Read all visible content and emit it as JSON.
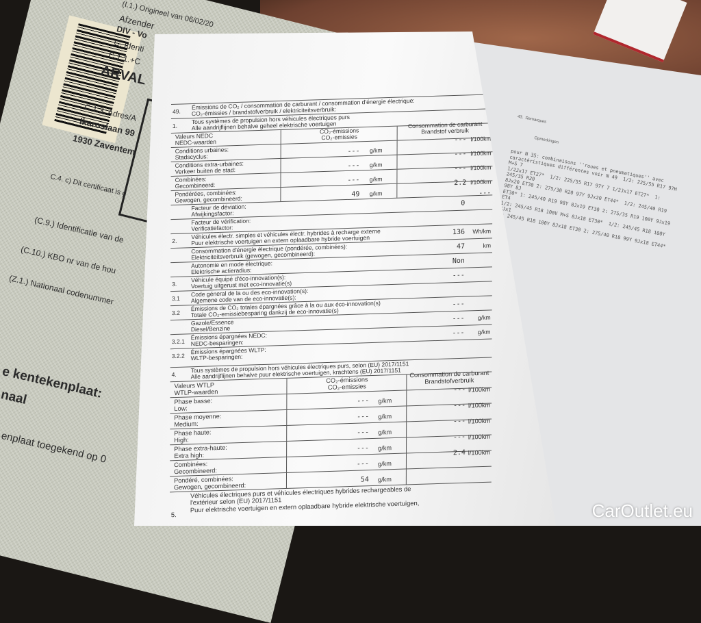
{
  "certificate": {
    "lines": [
      "(I.1.)  Origineel van 06/02/20",
      "Afzender",
      "DIV - Vo",
      "C. Identi",
      "C.1.1.+C",
      "ARVAL",
      "C.1.3. Adres/A",
      "Ikaroslaan 99",
      "1930 Zaventem",
      "C.4. c) Dit certificaat is g",
      "(C.9.) Identificatie van de",
      "(C.10.) KBO nr van de hou",
      "(Z.1.) Nationaal codenummer",
      "e kentekenplaat:",
      "naal",
      "enplaat toegekend op 0"
    ]
  },
  "remarks": {
    "header": [
      "43.  Remarques",
      "Opmerkingen"
    ],
    "text": "pour N 35: combinaisons ''roues et pneumatiques'' avec\ncaractéristiques différentes voir N 49  1/2: 225/55 R17 97H M+S 7\n1/2Jx17 ET27*  1/2: 225/55 R17 97Y 7 1/2Jx17 ET27*  1: 245/35 R20\n8Jx20 ET30 2: 275/30 R20 97Y 9Jx20 ET44*  1/2: 245/40 R19 98Y 8J\nET30* 1: 245/40 R19 98Y 8Jx19 ET30 2: 275/35 R19 100Y 9Jx19 ET4\n1/2: 245/45 R18 100V M+S 8Jx18 ET30*  1/2: 245/45 R18 100Y 8Jx1\n1: 245/45 R18 100Y 8Jx18 ET30 2: 275/40 R18 99Y 9Jx18 ET44*"
  },
  "section49": {
    "num": "49.",
    "l1": "Émissions de CO₂ / consommation de carburant / consommation d'énergie électrique:",
    "l2": "CO₂-émissies / brandstofverbruik / elektriciteitsverbruik:"
  },
  "section1": {
    "num": "1.",
    "l1": "Tous systèmes de propulsion hors véhicules électriques purs",
    "l2": "Alle aandrijflijnen behalve geheel elektrische voertuigen"
  },
  "nedc_table": {
    "headers": [
      [
        "Valeurs NEDC",
        "NEDC-waarden"
      ],
      [
        "CO₂-émissions",
        "CO₂-emissies"
      ],
      [
        "Consommation de carburant",
        "Brandstof verbruik"
      ]
    ],
    "rows": [
      {
        "l1": "Conditions urbaines:",
        "l2": "Stadscyclus:",
        "co2": "---",
        "co2_unit": "g/km",
        "fuel": "---",
        "fuel_unit": "l/100km"
      },
      {
        "l1": "Conditions extra-urbaines:",
        "l2": "Verkeer buiten de stad:",
        "co2": "---",
        "co2_unit": "g/km",
        "fuel": "---",
        "fuel_unit": "l/100km"
      },
      {
        "l1": "Combinées:",
        "l2": "Gecombineerd:",
        "co2": "---",
        "co2_unit": "g/km",
        "fuel": "---",
        "fuel_unit": "l/100km"
      },
      {
        "l1": "Pondérées, combinées:",
        "l2": "Gewogen, gecombineerd:",
        "co2": "49",
        "co2_unit": "g/km",
        "fuel": "2.2",
        "fuel_unit": "l/100km"
      }
    ],
    "after_fuel": "---"
  },
  "rows_mid": [
    {
      "num": "",
      "l1": "Facteur de déviation:",
      "l2": "Afwijkingsfactor:",
      "value": "0",
      "unit": ""
    },
    {
      "num": "",
      "l1": "Facteur de vérification:",
      "l2": "Verificatiefactor:",
      "value": "",
      "unit": ""
    },
    {
      "num": "2.",
      "l1": "Véhicules électr. simples et véhicules électr. hybrides à recharge externe",
      "l2": "Puur elektrische voertuigen en extern oplaadbare hybride voertuigen",
      "value": "136",
      "unit": "Wh/km"
    },
    {
      "num": "",
      "l1": "Consommation d'énergie électrique (pondérée, combinées):",
      "l2": "Elektriciteitsverbruik (gewogen, gecombineerd):",
      "value": "47",
      "unit": "km"
    },
    {
      "num": "",
      "l1": "Autonomie en mode électrique:",
      "l2": "Elektrische actieradius:",
      "value": "Non",
      "unit": ""
    },
    {
      "num": "3.",
      "l1": "Véhicule équipé d'éco-innovation(s):",
      "l2": "Voertuig uitgerust met eco-innovatie(s)",
      "value": "---",
      "unit": ""
    },
    {
      "num": "3.1",
      "l1": "Code géneral de la ou des eco-innovation(s):",
      "l2": "Algemene code van de eco-innovatie(s):",
      "value": "",
      "unit": ""
    },
    {
      "num": "3.2",
      "l1": "Émissions de CO₂ totales épargnées grâce à la ou aux éco-innovation(s)",
      "l2": "Totale CO₂-emissiebesparing dankzij de eco-innovatie(s)",
      "value": "---",
      "unit": ""
    },
    {
      "num": "",
      "l1": "Gazole/Essence",
      "l2": "Diesel/Benzine",
      "value": "---",
      "unit": "g/km"
    },
    {
      "num": "3.2.1",
      "l1": "Émissions épargnées NEDC:",
      "l2": "NEDC-besparingen:",
      "value": "---",
      "unit": "g/km"
    },
    {
      "num": "3.2.2",
      "l1": "Émissions épargnées WLTP:",
      "l2": "WLTP-besparingen:",
      "value": "",
      "unit": ""
    }
  ],
  "section4": {
    "num": "4.",
    "l1": "Tous systèmes de propulsion hors véhicules électriques purs, selon (EU) 2017/1151",
    "l2": "Alle aandrijflijnen behalve puur elektrische voertuigen, krachtens (EU) 2017/1151"
  },
  "wltp_table": {
    "headers": [
      [
        "Valeurs WTLP",
        "WTLP-waarden"
      ],
      [
        "CO₂-émissions",
        "CO₂-emissies"
      ],
      [
        "Consommation de carburant",
        "Brandstofverbruik"
      ]
    ],
    "rows": [
      {
        "l1": "Phase basse:",
        "l2": "Low:",
        "co2": "---",
        "co2_unit": "g/km",
        "fuel": "---",
        "fuel_unit": "l/100km"
      },
      {
        "l1": "Phase moyenne:",
        "l2": "Medium:",
        "co2": "---",
        "co2_unit": "g/km",
        "fuel": "---",
        "fuel_unit": "l/100km"
      },
      {
        "l1": "Phase haute:",
        "l2": "High:",
        "co2": "---",
        "co2_unit": "g/km",
        "fuel": "---",
        "fuel_unit": "l/100km"
      },
      {
        "l1": "Phase extra-haute:",
        "l2": "Extra high:",
        "co2": "---",
        "co2_unit": "g/km",
        "fuel": "---",
        "fuel_unit": "l/100km"
      },
      {
        "l1": "Combinées:",
        "l2": "Gecombineerd:",
        "co2": "---",
        "co2_unit": "g/km",
        "fuel": "2.4",
        "fuel_unit": "l/100km"
      },
      {
        "l1": "Pondéré, combinées:",
        "l2": "Gewogen, gecombineerd:",
        "co2": "54",
        "co2_unit": "g/km",
        "fuel": "",
        "fuel_unit": ""
      }
    ]
  },
  "section5": {
    "num": "5.",
    "l1": "Véhicules électriques purs et véhicules électriques hybrides rechargeables de",
    "l2": "l'extérieur selon (EU) 2017/1151",
    "l3": "Puur elektrische voertuigen en extern oplaadbare hybride elektrische voertuigen,"
  },
  "watermark": "CarOutlet.eu"
}
